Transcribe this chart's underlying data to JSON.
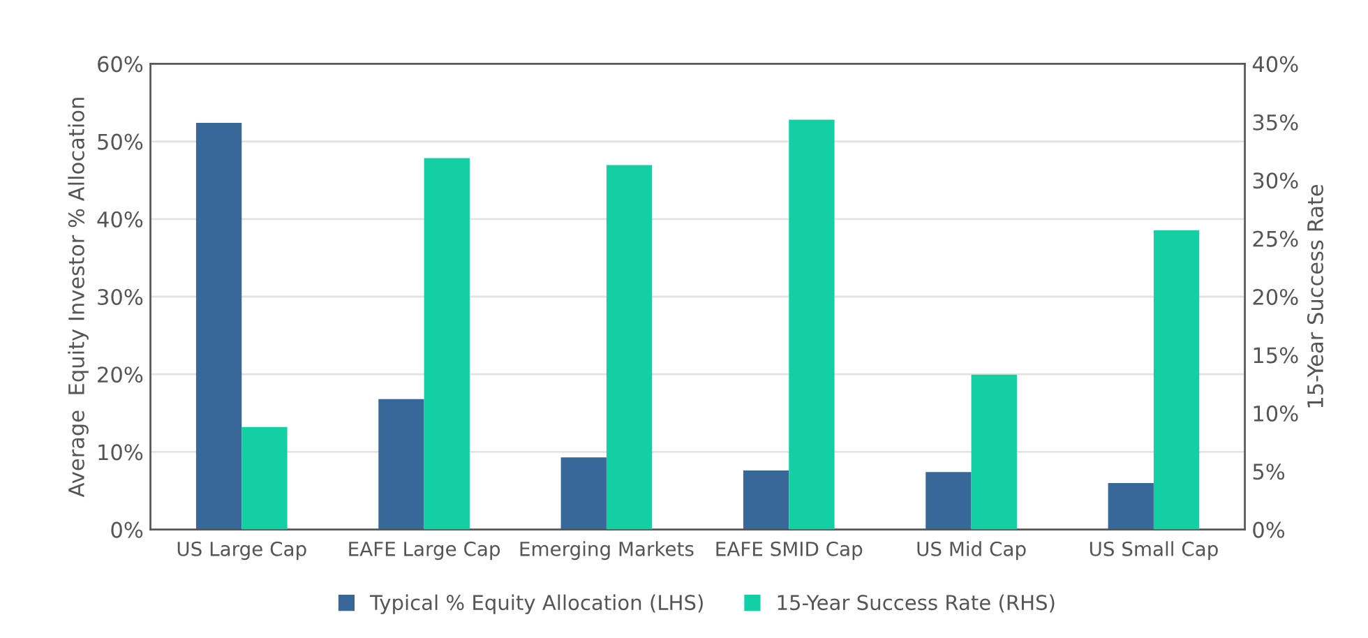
{
  "chart_data": {
    "type": "bar",
    "categories": [
      "US Large Cap",
      "EAFE Large Cap",
      "Emerging Markets",
      "EAFE SMID Cap",
      "US Mid Cap",
      "US Small Cap"
    ],
    "series": [
      {
        "name": "Typical % Equity Allocation (LHS)",
        "color": "#386898",
        "values": [
          52.4,
          16.8,
          9.3,
          7.6,
          7.4,
          6.0
        ]
      },
      {
        "name": "15-Year Success Rate (RHS)",
        "color": "#14cfa4",
        "axis": "y2",
        "values": [
          8.8,
          31.9,
          31.3,
          35.2,
          13.3,
          25.7
        ]
      }
    ],
    "ylabel": "Average  Equity Investor % Allocation",
    "y2label": "15-Year Success Rate",
    "ylim": [
      0,
      60
    ],
    "yticks": [
      {
        "value": 0,
        "label": "0%"
      },
      {
        "value": 10,
        "label": "10%"
      },
      {
        "value": 20,
        "label": "20%"
      },
      {
        "value": 30,
        "label": "30%"
      },
      {
        "value": 40,
        "label": "40%"
      },
      {
        "value": 50,
        "label": "50%"
      },
      {
        "value": 60,
        "label": "60%"
      }
    ],
    "y2lim": [
      0,
      40
    ],
    "y2ticks": [
      {
        "value": 0,
        "label": "0%"
      },
      {
        "value": 5,
        "label": "5%"
      },
      {
        "value": 10,
        "label": "10%"
      },
      {
        "value": 15,
        "label": "15%"
      },
      {
        "value": 20,
        "label": "20%"
      },
      {
        "value": 25,
        "label": "25%"
      },
      {
        "value": 30,
        "label": "30%"
      },
      {
        "value": 35,
        "label": "35%"
      },
      {
        "value": 40,
        "label": "40%"
      }
    ],
    "grid": "y",
    "legend": "bottom"
  }
}
